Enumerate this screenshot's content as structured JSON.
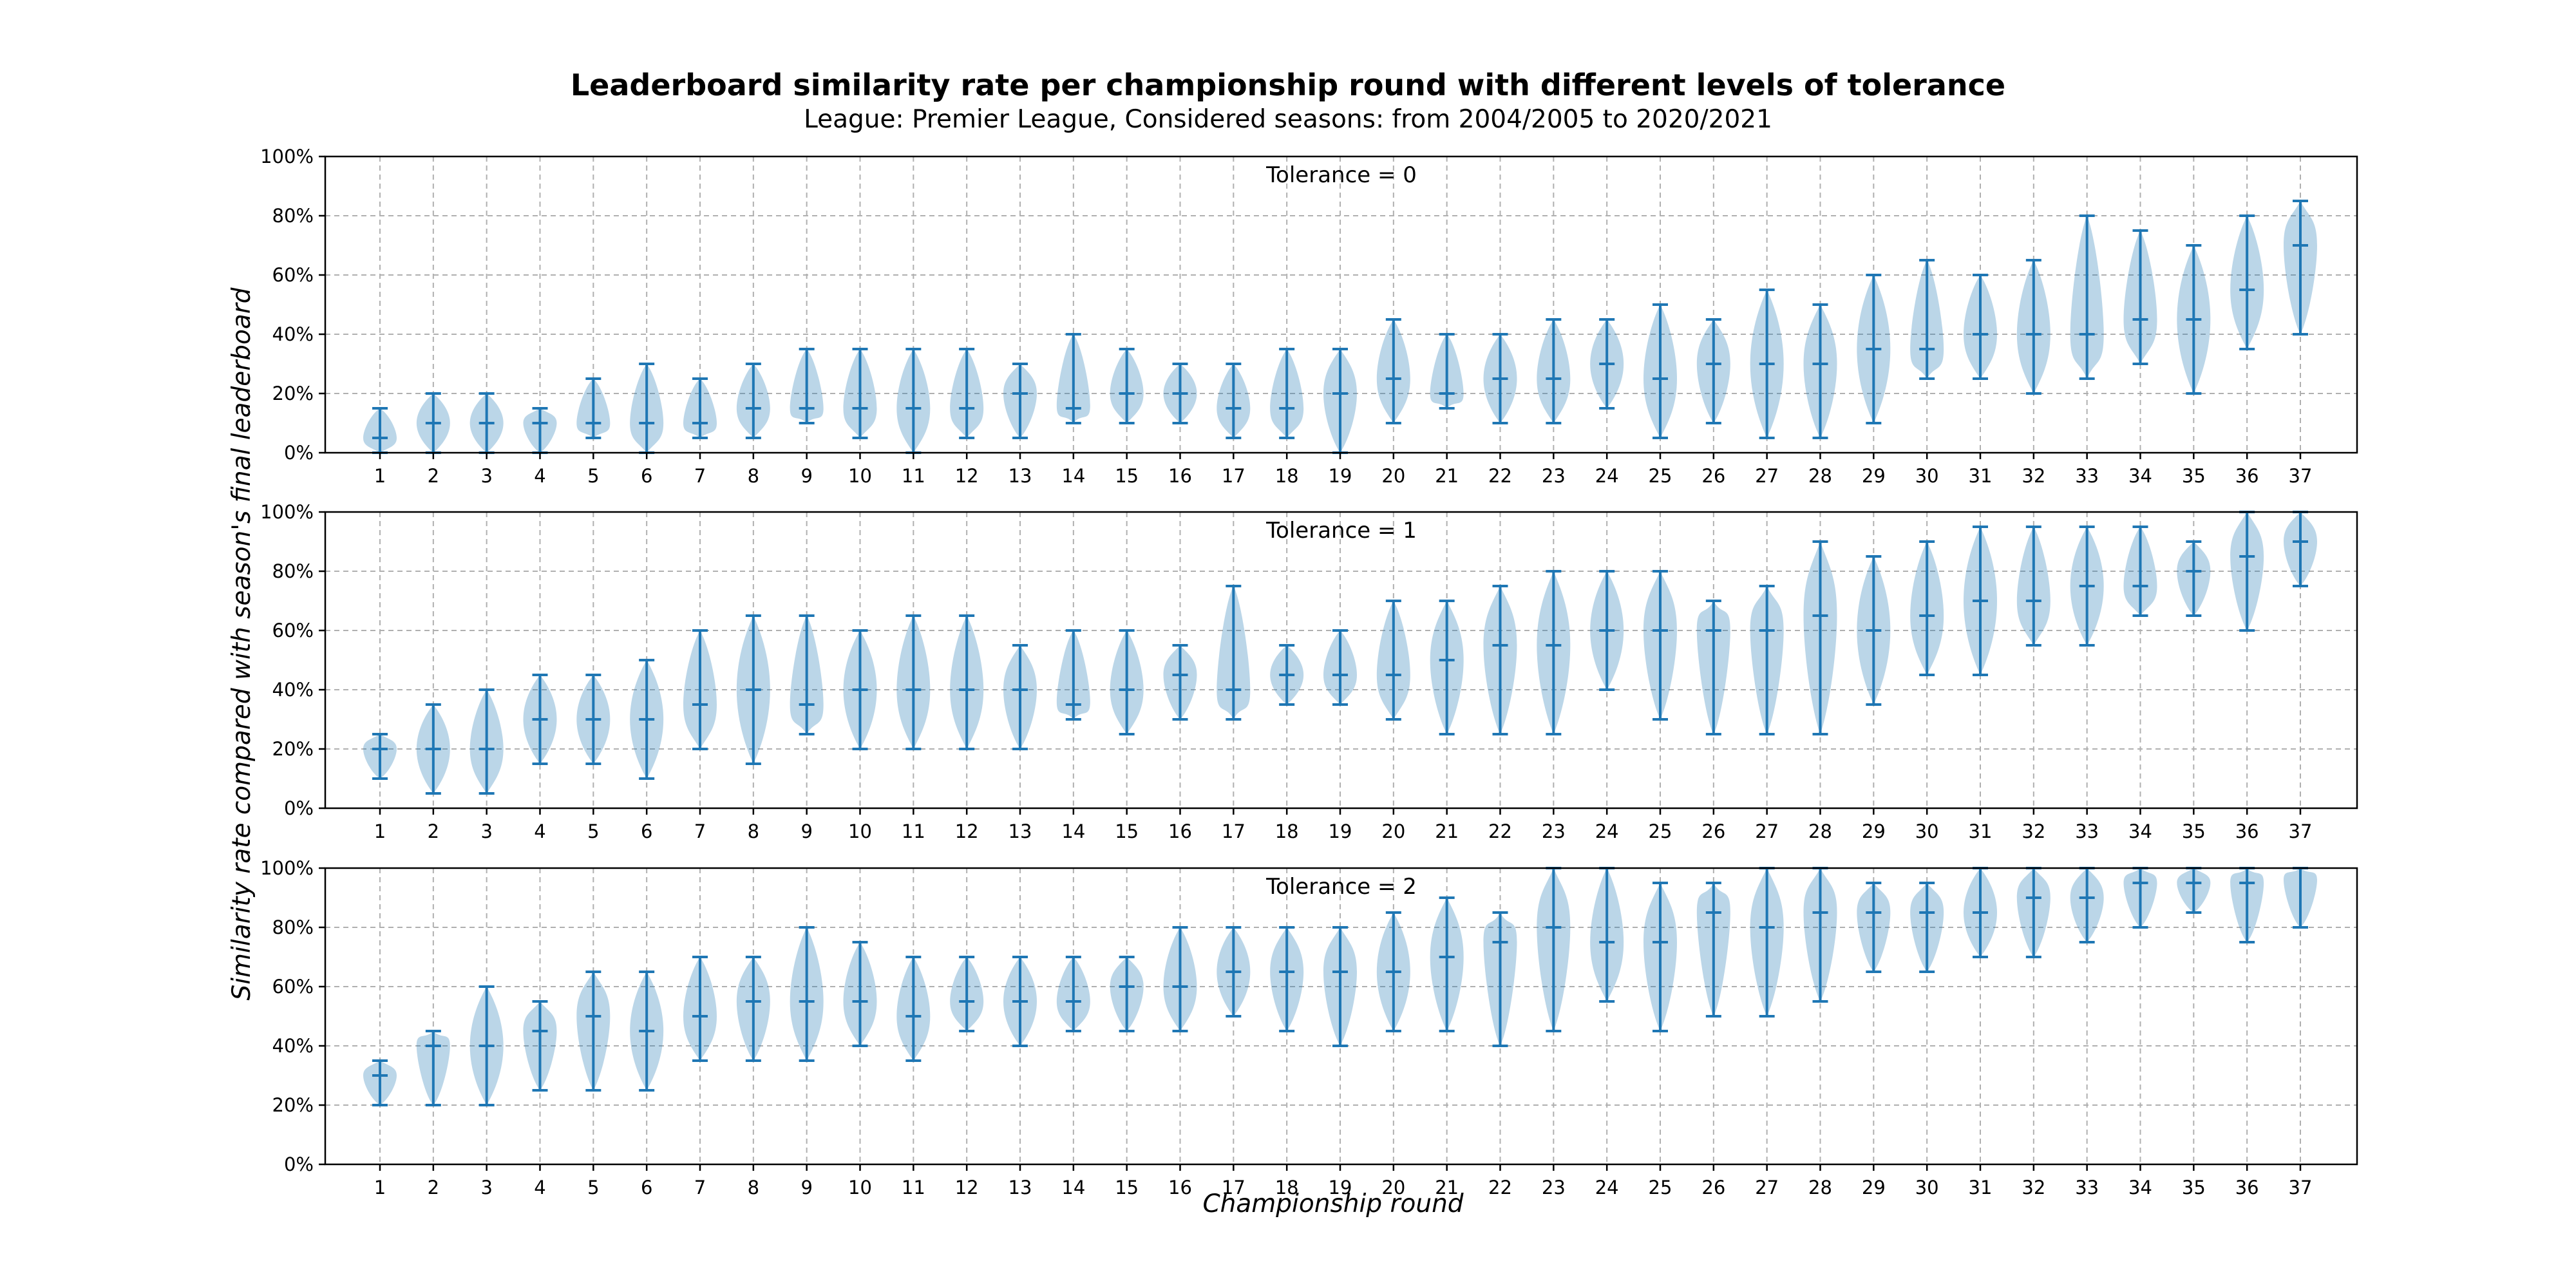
{
  "chart_data": {
    "type": "violin",
    "title": "Leaderboard similarity rate per championship round with different levels of tolerance",
    "subtitle": "League: Premier League, Considered seasons: from 2004/2005 to 2020/2021",
    "xlabel": "Championship round",
    "ylabel": "Similarity rate compared with season's final leaderboard",
    "ylim": [
      0,
      100
    ],
    "yticks": [
      0,
      20,
      40,
      60,
      80,
      100
    ],
    "ytick_suffix": "%",
    "grid": true,
    "categories": [
      1,
      2,
      3,
      4,
      5,
      6,
      7,
      8,
      9,
      10,
      11,
      12,
      13,
      14,
      15,
      16,
      17,
      18,
      19,
      20,
      21,
      22,
      23,
      24,
      25,
      26,
      27,
      28,
      29,
      30,
      31,
      32,
      33,
      34,
      35,
      36,
      37
    ],
    "colors": {
      "violin_fill": "#1f77b4",
      "line": "#1f77b4"
    },
    "panels": [
      {
        "title": "Tolerance = 0",
        "min": [
          0,
          0,
          0,
          0,
          5,
          0,
          5,
          5,
          10,
          5,
          0,
          5,
          5,
          10,
          10,
          10,
          5,
          5,
          0,
          10,
          15,
          10,
          10,
          15,
          5,
          10,
          5,
          5,
          10,
          25,
          25,
          20,
          25,
          30,
          20,
          35,
          40
        ],
        "median": [
          5,
          10,
          10,
          10,
          10,
          10,
          10,
          15,
          15,
          15,
          15,
          15,
          20,
          15,
          20,
          20,
          15,
          15,
          20,
          25,
          20,
          25,
          25,
          30,
          25,
          30,
          30,
          30,
          35,
          35,
          40,
          40,
          40,
          45,
          45,
          55,
          70
        ],
        "max": [
          15,
          20,
          20,
          15,
          25,
          30,
          25,
          30,
          35,
          35,
          35,
          35,
          30,
          40,
          35,
          30,
          30,
          35,
          35,
          45,
          40,
          40,
          45,
          45,
          50,
          45,
          55,
          50,
          60,
          65,
          60,
          65,
          80,
          75,
          70,
          80,
          85
        ]
      },
      {
        "title": "Tolerance = 1",
        "min": [
          10,
          5,
          5,
          15,
          15,
          10,
          20,
          15,
          25,
          20,
          20,
          20,
          20,
          30,
          25,
          30,
          30,
          35,
          35,
          30,
          25,
          25,
          25,
          40,
          30,
          25,
          25,
          25,
          35,
          45,
          45,
          55,
          55,
          65,
          65,
          60,
          75
        ],
        "median": [
          20,
          20,
          20,
          30,
          30,
          30,
          35,
          40,
          35,
          40,
          40,
          40,
          40,
          35,
          40,
          45,
          40,
          45,
          45,
          45,
          50,
          55,
          55,
          60,
          60,
          60,
          60,
          65,
          60,
          65,
          70,
          70,
          75,
          75,
          80,
          85,
          90
        ],
        "max": [
          25,
          35,
          40,
          45,
          45,
          50,
          60,
          65,
          65,
          60,
          65,
          65,
          55,
          60,
          60,
          55,
          75,
          55,
          60,
          70,
          70,
          75,
          80,
          80,
          80,
          70,
          75,
          90,
          85,
          90,
          95,
          95,
          95,
          95,
          90,
          100,
          100
        ]
      },
      {
        "title": "Tolerance = 2",
        "min": [
          20,
          20,
          20,
          25,
          25,
          25,
          35,
          35,
          35,
          40,
          35,
          45,
          40,
          45,
          45,
          45,
          50,
          45,
          40,
          45,
          45,
          40,
          45,
          55,
          45,
          50,
          50,
          55,
          65,
          65,
          70,
          70,
          75,
          80,
          85,
          75,
          80
        ],
        "median": [
          30,
          40,
          40,
          45,
          50,
          45,
          50,
          55,
          55,
          55,
          50,
          55,
          55,
          55,
          60,
          60,
          65,
          65,
          65,
          65,
          70,
          75,
          80,
          75,
          75,
          85,
          80,
          85,
          85,
          85,
          85,
          90,
          90,
          95,
          95,
          95,
          100
        ],
        "max": [
          35,
          45,
          60,
          55,
          65,
          65,
          70,
          70,
          80,
          75,
          70,
          70,
          70,
          70,
          70,
          80,
          80,
          80,
          80,
          85,
          90,
          85,
          100,
          100,
          95,
          95,
          100,
          100,
          95,
          95,
          100,
          100,
          100,
          100,
          100,
          100,
          100
        ]
      }
    ]
  }
}
